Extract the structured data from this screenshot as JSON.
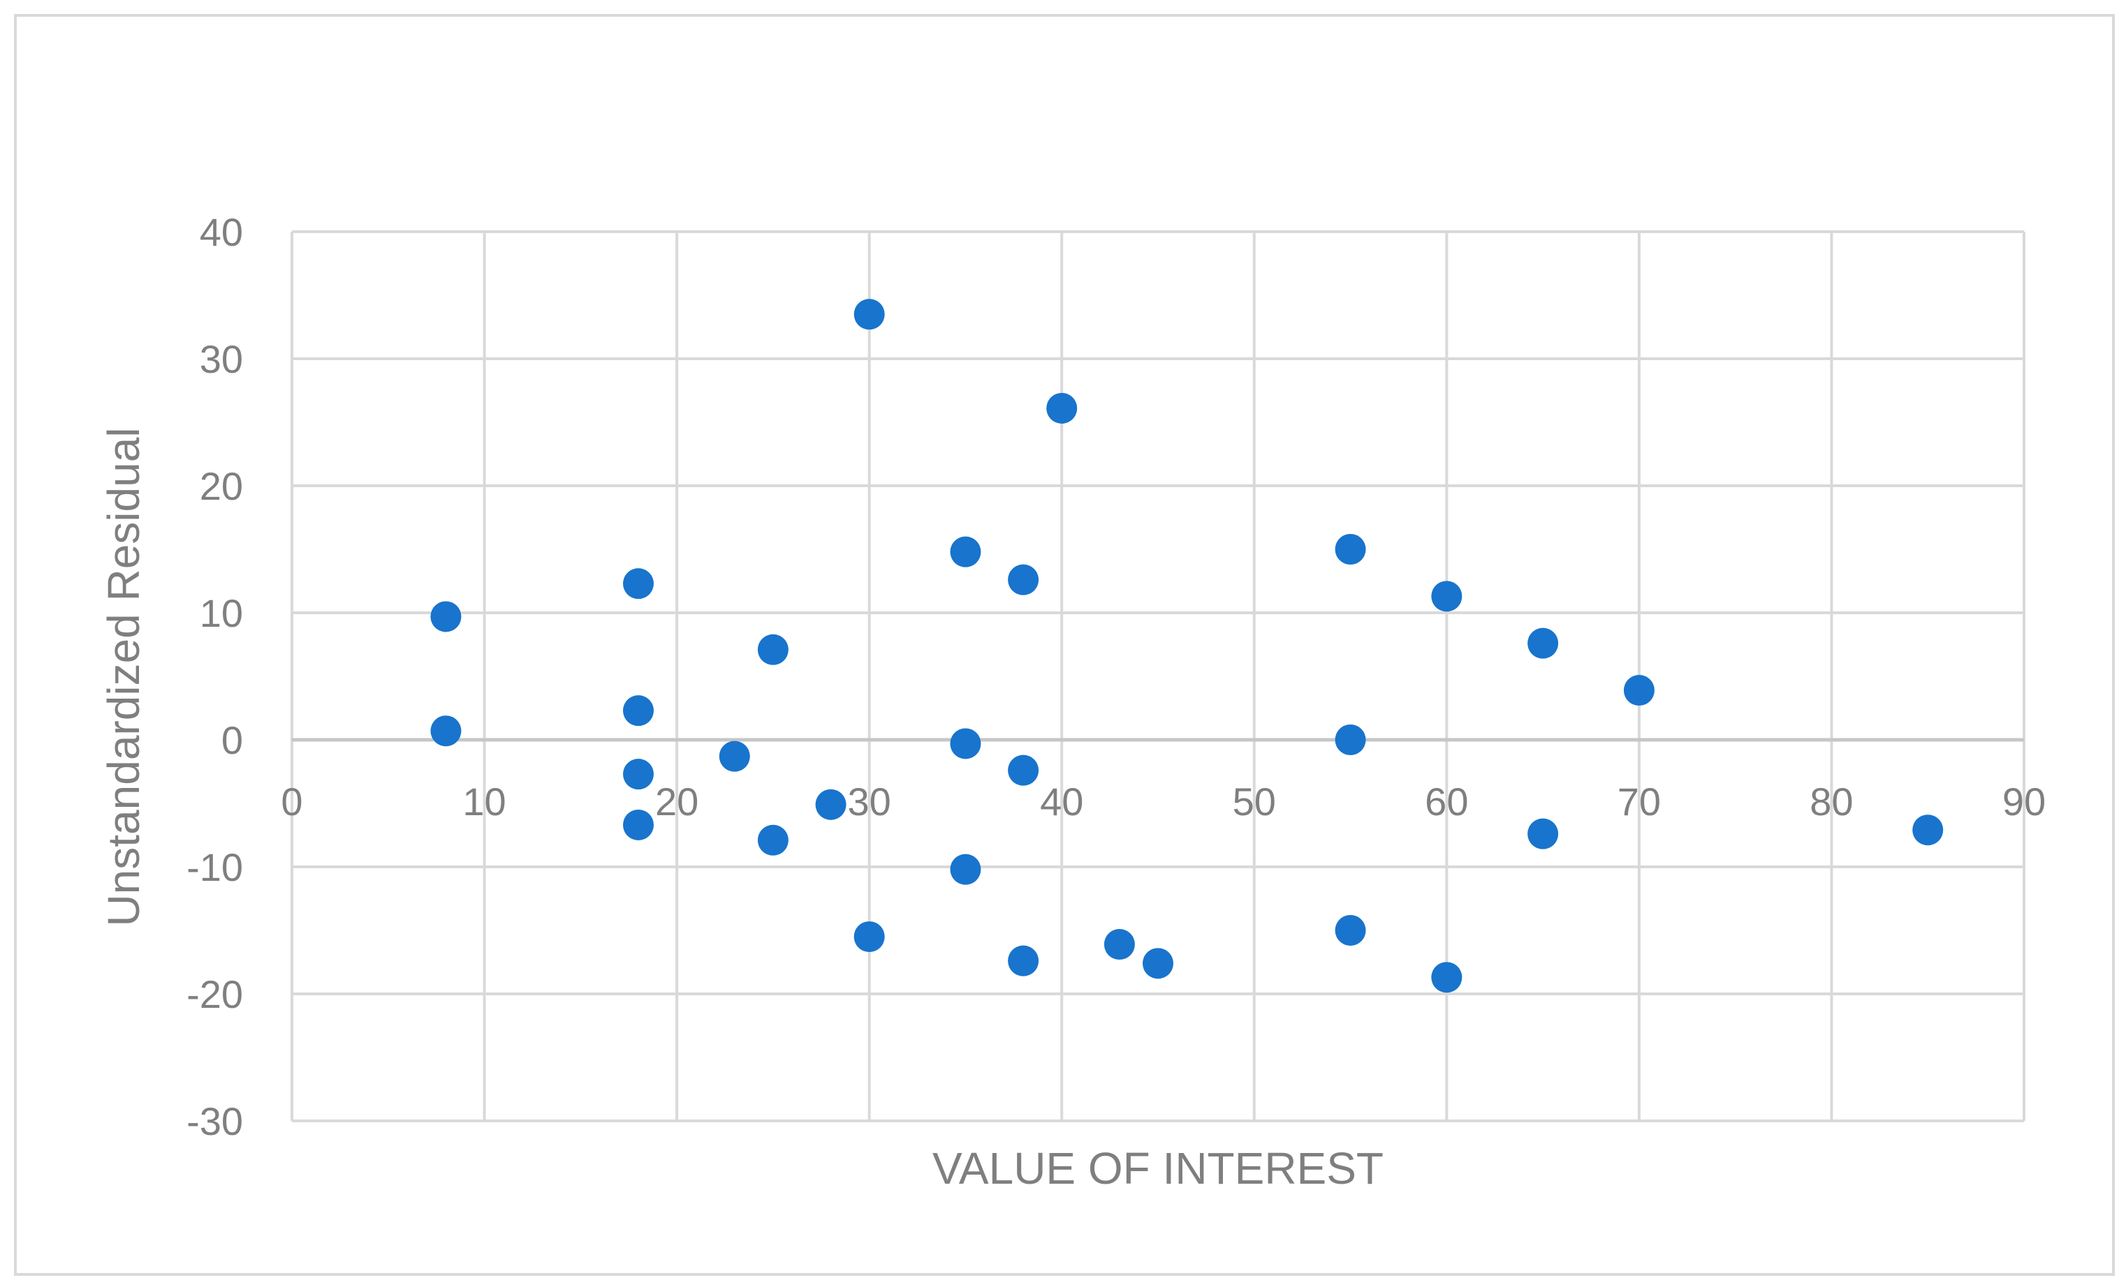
{
  "chart_data": {
    "type": "scatter",
    "title": "",
    "xlabel": "VALUE OF INTEREST",
    "ylabel": "Unstandardized Residual",
    "xlim": [
      0,
      90
    ],
    "ylim": [
      -30,
      40
    ],
    "x_ticks": [
      "0",
      "10",
      "20",
      "30",
      "40",
      "50",
      "60",
      "70",
      "80",
      "90"
    ],
    "y_ticks": [
      "40",
      "30",
      "20",
      "10",
      "0",
      "-10",
      "-20",
      "-30"
    ],
    "x_tick_values": [
      0,
      10,
      20,
      30,
      40,
      50,
      60,
      70,
      80,
      90
    ],
    "y_tick_values": [
      40,
      30,
      20,
      10,
      0,
      -10,
      -20,
      -30
    ],
    "grid": true,
    "legend": "none",
    "point_color": "#1874cd",
    "points": [
      {
        "x": 8,
        "y": 9.7
      },
      {
        "x": 8,
        "y": 0.7
      },
      {
        "x": 18,
        "y": 12.3
      },
      {
        "x": 18,
        "y": 2.3
      },
      {
        "x": 18,
        "y": -2.7
      },
      {
        "x": 18,
        "y": -6.7
      },
      {
        "x": 23,
        "y": -1.3
      },
      {
        "x": 25,
        "y": 7.1
      },
      {
        "x": 25,
        "y": -7.9
      },
      {
        "x": 28,
        "y": -5.1
      },
      {
        "x": 30,
        "y": 33.5
      },
      {
        "x": 30,
        "y": -15.5
      },
      {
        "x": 35,
        "y": 14.8
      },
      {
        "x": 35,
        "y": -0.3
      },
      {
        "x": 35,
        "y": -10.2
      },
      {
        "x": 38,
        "y": 12.6
      },
      {
        "x": 38,
        "y": -2.4
      },
      {
        "x": 38,
        "y": -17.4
      },
      {
        "x": 40,
        "y": 26.1
      },
      {
        "x": 43,
        "y": -16.1
      },
      {
        "x": 45,
        "y": -17.6
      },
      {
        "x": 55,
        "y": 15.0
      },
      {
        "x": 55,
        "y": 0.0
      },
      {
        "x": 55,
        "y": -15.0
      },
      {
        "x": 60,
        "y": 11.3
      },
      {
        "x": 60,
        "y": -18.7
      },
      {
        "x": 65,
        "y": 7.6
      },
      {
        "x": 65,
        "y": -7.4
      },
      {
        "x": 70,
        "y": 3.9
      },
      {
        "x": 85,
        "y": -7.1
      }
    ]
  }
}
